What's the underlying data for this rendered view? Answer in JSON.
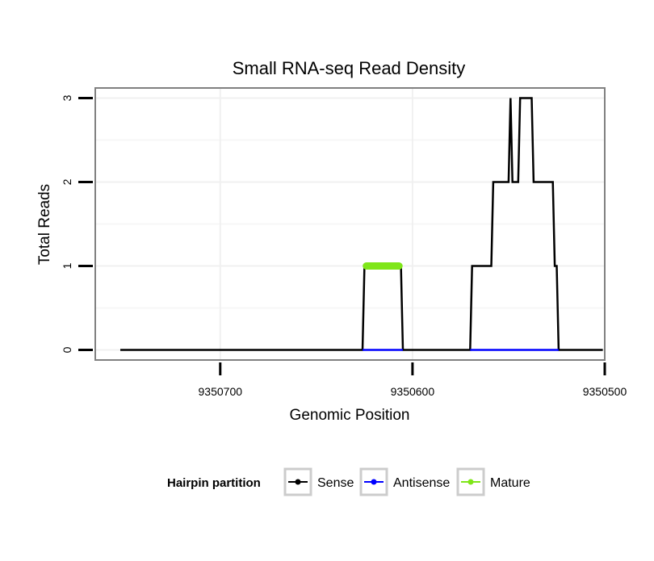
{
  "chart_data": {
    "type": "line",
    "title": "Small RNA-seq Read Density",
    "xlabel": "Genomic Position",
    "ylabel": "Total Reads",
    "x_reversed": true,
    "xlim": [
      9350765,
      9350500
    ],
    "ylim": [
      -0.12,
      3.12
    ],
    "x_ticks": [
      9350700,
      9350600,
      9350500
    ],
    "x_tick_labels": [
      "9350700",
      "9350600",
      "9350500"
    ],
    "y_ticks": [
      0,
      1,
      2,
      3
    ],
    "y_tick_labels": [
      "0",
      "1",
      "2",
      "3"
    ],
    "grid": true,
    "legend": {
      "title": "Hairpin partition",
      "position": "bottom",
      "entries": [
        {
          "label": "Sense",
          "color": "#000000"
        },
        {
          "label": "Antisense",
          "color": "#0000ff"
        },
        {
          "label": "Mature",
          "color": "#7fe619"
        }
      ]
    },
    "series": [
      {
        "name": "Sense",
        "color": "#000000",
        "points": [
          [
            9350752,
            0
          ],
          [
            9350626,
            0
          ],
          [
            9350625,
            1
          ],
          [
            9350606,
            1
          ],
          [
            9350605,
            0
          ],
          [
            9350570,
            0
          ],
          [
            9350569,
            1
          ],
          [
            9350559,
            1
          ],
          [
            9350558,
            2
          ],
          [
            9350550,
            2
          ],
          [
            9350549,
            3
          ],
          [
            9350548,
            2
          ],
          [
            9350545,
            2
          ],
          [
            9350544,
            3
          ],
          [
            9350538,
            3
          ],
          [
            9350537,
            2
          ],
          [
            9350527,
            2
          ],
          [
            9350526,
            1
          ],
          [
            9350525,
            1
          ],
          [
            9350524,
            0
          ],
          [
            9350501,
            0
          ]
        ]
      },
      {
        "name": "Antisense",
        "color": "#0000ff",
        "points": [
          [
            9350626,
            0
          ],
          [
            9350605,
            0
          ],
          [
            9350570,
            0
          ],
          [
            9350524,
            0
          ]
        ]
      },
      {
        "name": "Mature",
        "color": "#7fe619",
        "points": [
          [
            9350624,
            1
          ],
          [
            9350607,
            1
          ]
        ]
      }
    ]
  }
}
